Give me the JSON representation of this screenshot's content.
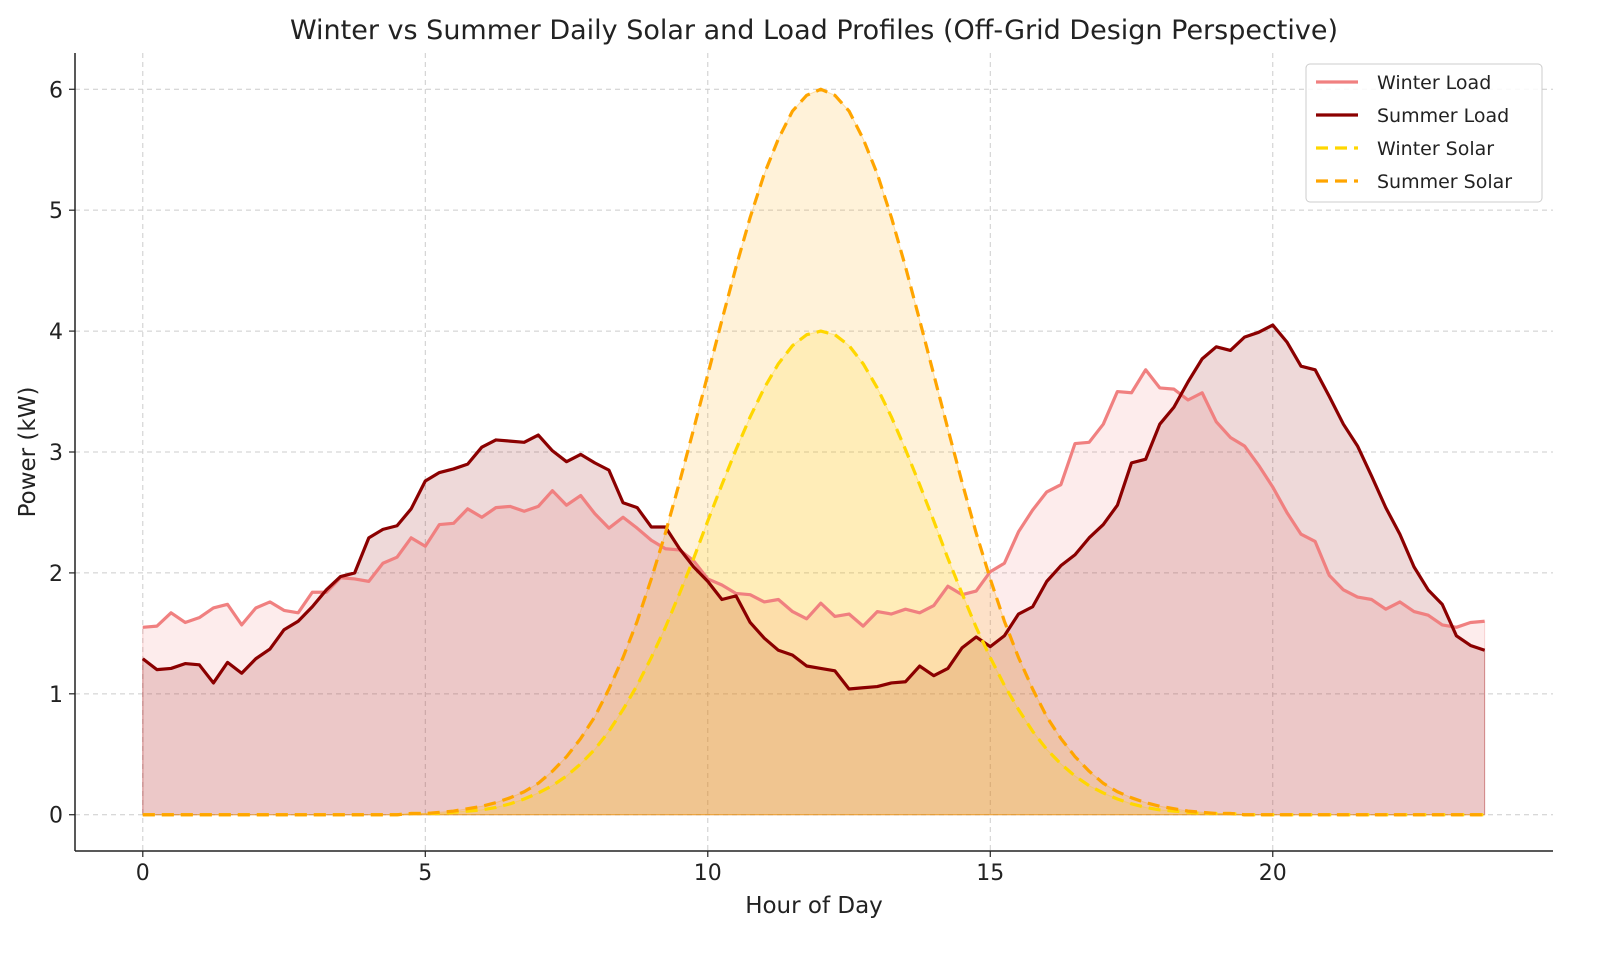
{
  "chart_data": {
    "type": "line",
    "title": "Winter vs Summer Daily Solar and Load Profiles (Off-Grid Design Perspective)",
    "xlabel": "Hour of Day",
    "ylabel": "Power (kW)",
    "xlim": [
      -1.2,
      24.96
    ],
    "ylim": [
      -0.3,
      6.3
    ],
    "xticks": [
      0,
      5,
      10,
      15,
      20
    ],
    "yticks": [
      0,
      1,
      2,
      3,
      4,
      5,
      6
    ],
    "grid": true,
    "legend_position": "top-right",
    "x_start": 0,
    "x_step": 0.25,
    "series": [
      {
        "name": "Winter Load",
        "color": "#f08080",
        "dashed": false,
        "fill": true,
        "values": [
          1.55,
          1.56,
          1.67,
          1.59,
          1.63,
          1.71,
          1.74,
          1.57,
          1.71,
          1.76,
          1.69,
          1.67,
          1.84,
          1.84,
          1.96,
          1.95,
          1.93,
          2.08,
          2.13,
          2.29,
          2.22,
          2.4,
          2.41,
          2.53,
          2.46,
          2.54,
          2.55,
          2.51,
          2.55,
          2.68,
          2.56,
          2.64,
          2.49,
          2.37,
          2.46,
          2.37,
          2.27,
          2.2,
          2.19,
          2.1,
          1.95,
          1.9,
          1.83,
          1.82,
          1.76,
          1.78,
          1.68,
          1.62,
          1.75,
          1.64,
          1.66,
          1.56,
          1.68,
          1.66,
          1.7,
          1.67,
          1.73,
          1.89,
          1.82,
          1.85,
          2.01,
          2.08,
          2.34,
          2.52,
          2.67,
          2.73,
          3.07,
          3.08,
          3.23,
          3.5,
          3.49,
          3.68,
          3.53,
          3.52,
          3.43,
          3.49,
          3.25,
          3.12,
          3.05,
          2.89,
          2.71,
          2.5,
          2.32,
          2.26,
          1.98,
          1.86,
          1.8,
          1.78,
          1.7,
          1.76,
          1.68,
          1.65,
          1.57,
          1.55,
          1.59,
          1.6
        ]
      },
      {
        "name": "Summer Load",
        "color": "#8b0000",
        "dashed": false,
        "fill": true,
        "values": [
          1.29,
          1.2,
          1.21,
          1.25,
          1.24,
          1.09,
          1.26,
          1.17,
          1.29,
          1.37,
          1.53,
          1.6,
          1.72,
          1.86,
          1.97,
          2.0,
          2.29,
          2.36,
          2.39,
          2.53,
          2.76,
          2.83,
          2.86,
          2.9,
          3.04,
          3.1,
          3.09,
          3.08,
          3.14,
          3.01,
          2.92,
          2.98,
          2.91,
          2.85,
          2.58,
          2.54,
          2.38,
          2.38,
          2.2,
          2.05,
          1.93,
          1.78,
          1.81,
          1.59,
          1.46,
          1.36,
          1.32,
          1.23,
          1.21,
          1.19,
          1.04,
          1.05,
          1.06,
          1.09,
          1.1,
          1.23,
          1.15,
          1.21,
          1.38,
          1.47,
          1.39,
          1.48,
          1.66,
          1.72,
          1.93,
          2.06,
          2.15,
          2.29,
          2.4,
          2.56,
          2.91,
          2.94,
          3.23,
          3.37,
          3.58,
          3.77,
          3.87,
          3.84,
          3.95,
          3.99,
          4.05,
          3.91,
          3.71,
          3.68,
          3.46,
          3.23,
          3.05,
          2.8,
          2.54,
          2.32,
          2.05,
          1.86,
          1.74,
          1.48,
          1.4,
          1.36
        ]
      },
      {
        "name": "Winter Solar",
        "color": "#ffd700",
        "dashed": true,
        "fill": true,
        "values": [
          0,
          0,
          0,
          0,
          0,
          0,
          0,
          0,
          0,
          0,
          0,
          0,
          0,
          0,
          0,
          0,
          0,
          0,
          0,
          0.01,
          0.01,
          0.01,
          0.02,
          0.03,
          0.04,
          0.06,
          0.09,
          0.13,
          0.18,
          0.24,
          0.32,
          0.42,
          0.54,
          0.69,
          0.87,
          1.07,
          1.3,
          1.55,
          1.83,
          2.12,
          2.43,
          2.73,
          3.02,
          3.29,
          3.53,
          3.73,
          3.88,
          3.97,
          4.0,
          3.97,
          3.88,
          3.73,
          3.53,
          3.29,
          3.02,
          2.73,
          2.43,
          2.12,
          1.83,
          1.55,
          1.3,
          1.07,
          0.87,
          0.69,
          0.54,
          0.42,
          0.32,
          0.24,
          0.18,
          0.13,
          0.09,
          0.06,
          0.04,
          0.03,
          0.02,
          0.01,
          0.01,
          0.01,
          0,
          0,
          0,
          0,
          0,
          0,
          0,
          0,
          0,
          0,
          0,
          0,
          0,
          0,
          0,
          0,
          0,
          0
        ]
      },
      {
        "name": "Summer Solar",
        "color": "#ffa500",
        "dashed": true,
        "fill": true,
        "values": [
          0,
          0,
          0,
          0,
          0,
          0,
          0,
          0,
          0,
          0,
          0,
          0,
          0,
          0,
          0,
          0,
          0,
          0,
          0,
          0.01,
          0.01,
          0.02,
          0.03,
          0.05,
          0.07,
          0.1,
          0.14,
          0.19,
          0.26,
          0.36,
          0.48,
          0.63,
          0.81,
          1.04,
          1.3,
          1.6,
          1.95,
          2.33,
          2.75,
          3.19,
          3.64,
          4.09,
          4.53,
          4.94,
          5.3,
          5.59,
          5.82,
          5.95,
          6.0,
          5.95,
          5.82,
          5.59,
          5.3,
          4.94,
          4.53,
          4.09,
          3.64,
          3.19,
          2.75,
          2.33,
          1.95,
          1.6,
          1.3,
          1.04,
          0.81,
          0.63,
          0.48,
          0.36,
          0.26,
          0.19,
          0.14,
          0.1,
          0.07,
          0.05,
          0.03,
          0.02,
          0.01,
          0.01,
          0,
          0,
          0,
          0,
          0,
          0,
          0,
          0,
          0,
          0,
          0,
          0,
          0,
          0,
          0,
          0,
          0,
          0
        ]
      }
    ]
  }
}
